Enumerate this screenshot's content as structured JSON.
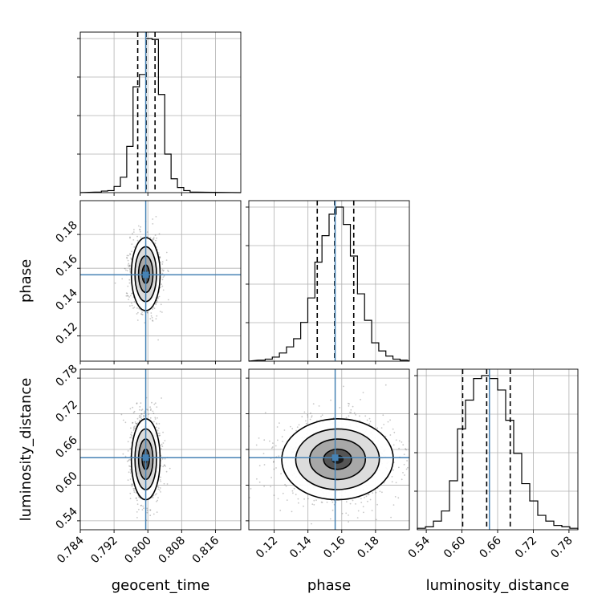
{
  "chart_data": {
    "type": "corner",
    "parameters": [
      {
        "name": "geocent_time",
        "label": "geocent_time",
        "range": [
          0.784,
          0.822
        ],
        "ticks": [
          "0.784",
          "0.792",
          "0.800",
          "0.808",
          "0.816"
        ],
        "tick_values": [
          0.784,
          0.792,
          0.8,
          0.808,
          0.816
        ],
        "median": 0.7996,
        "q16": 0.7976,
        "q84": 0.8017,
        "truth": 0.7995,
        "hist": {
          "start": 0.7875,
          "width": 0.0015,
          "counts": [
            1,
            3,
            4,
            12,
            30,
            90,
            206,
            230,
            300,
            298,
            191,
            75,
            27,
            10,
            4,
            1
          ]
        }
      },
      {
        "name": "phase",
        "label": "phase",
        "range": [
          0.105,
          0.2
        ],
        "ticks": [
          "0.12",
          "0.14",
          "0.16",
          "0.18"
        ],
        "tick_values": [
          0.12,
          0.14,
          0.16,
          0.18
        ],
        "median": 0.1558,
        "q16": 0.1455,
        "q84": 0.1671,
        "truth": 0.1561,
        "hist": {
          "start": 0.1105,
          "width": 0.0042,
          "counts": [
            1,
            2,
            4,
            8,
            14,
            22,
            38,
            62,
            97,
            123,
            144,
            151,
            134,
            103,
            66,
            40,
            18,
            10,
            5,
            2,
            1
          ]
        }
      },
      {
        "name": "luminosity_distance",
        "label": "luminosity_distance",
        "range": [
          0.525,
          0.795
        ],
        "ticks": [
          "0.54",
          "0.60",
          "0.66",
          "0.72",
          "0.78"
        ],
        "tick_values": [
          0.54,
          0.6,
          0.66,
          0.72,
          0.78
        ],
        "median": 0.6416,
        "q16": 0.6012,
        "q84": 0.6812,
        "truth": 0.6462,
        "hist": {
          "start": 0.525,
          "width": 0.0135,
          "counts": [
            1,
            2,
            6,
            13,
            34,
            70,
            90,
            105,
            107,
            105,
            97,
            76,
            53,
            32,
            20,
            10,
            6,
            3,
            2,
            1
          ]
        }
      }
    ],
    "pairs": [
      {
        "x": "geocent_time",
        "y": "phase",
        "center": [
          0.7995,
          0.1565
        ],
        "sd": [
          0.0017,
          0.0108
        ],
        "rho": 0.0
      },
      {
        "x": "geocent_time",
        "y": "luminosity_distance",
        "center": [
          0.7995,
          0.6435
        ],
        "sd": [
          0.0017,
          0.034
        ],
        "rho": 0.0
      },
      {
        "x": "phase",
        "y": "luminosity_distance",
        "center": [
          0.1575,
          0.6435
        ],
        "sd": [
          0.0165,
          0.034
        ],
        "rho": -0.05
      }
    ],
    "truth_color": "#4682b4",
    "contour_levels": [
      "0.5-sigma",
      "1-sigma",
      "1.5-sigma",
      "2-sigma"
    ],
    "grid": true
  }
}
